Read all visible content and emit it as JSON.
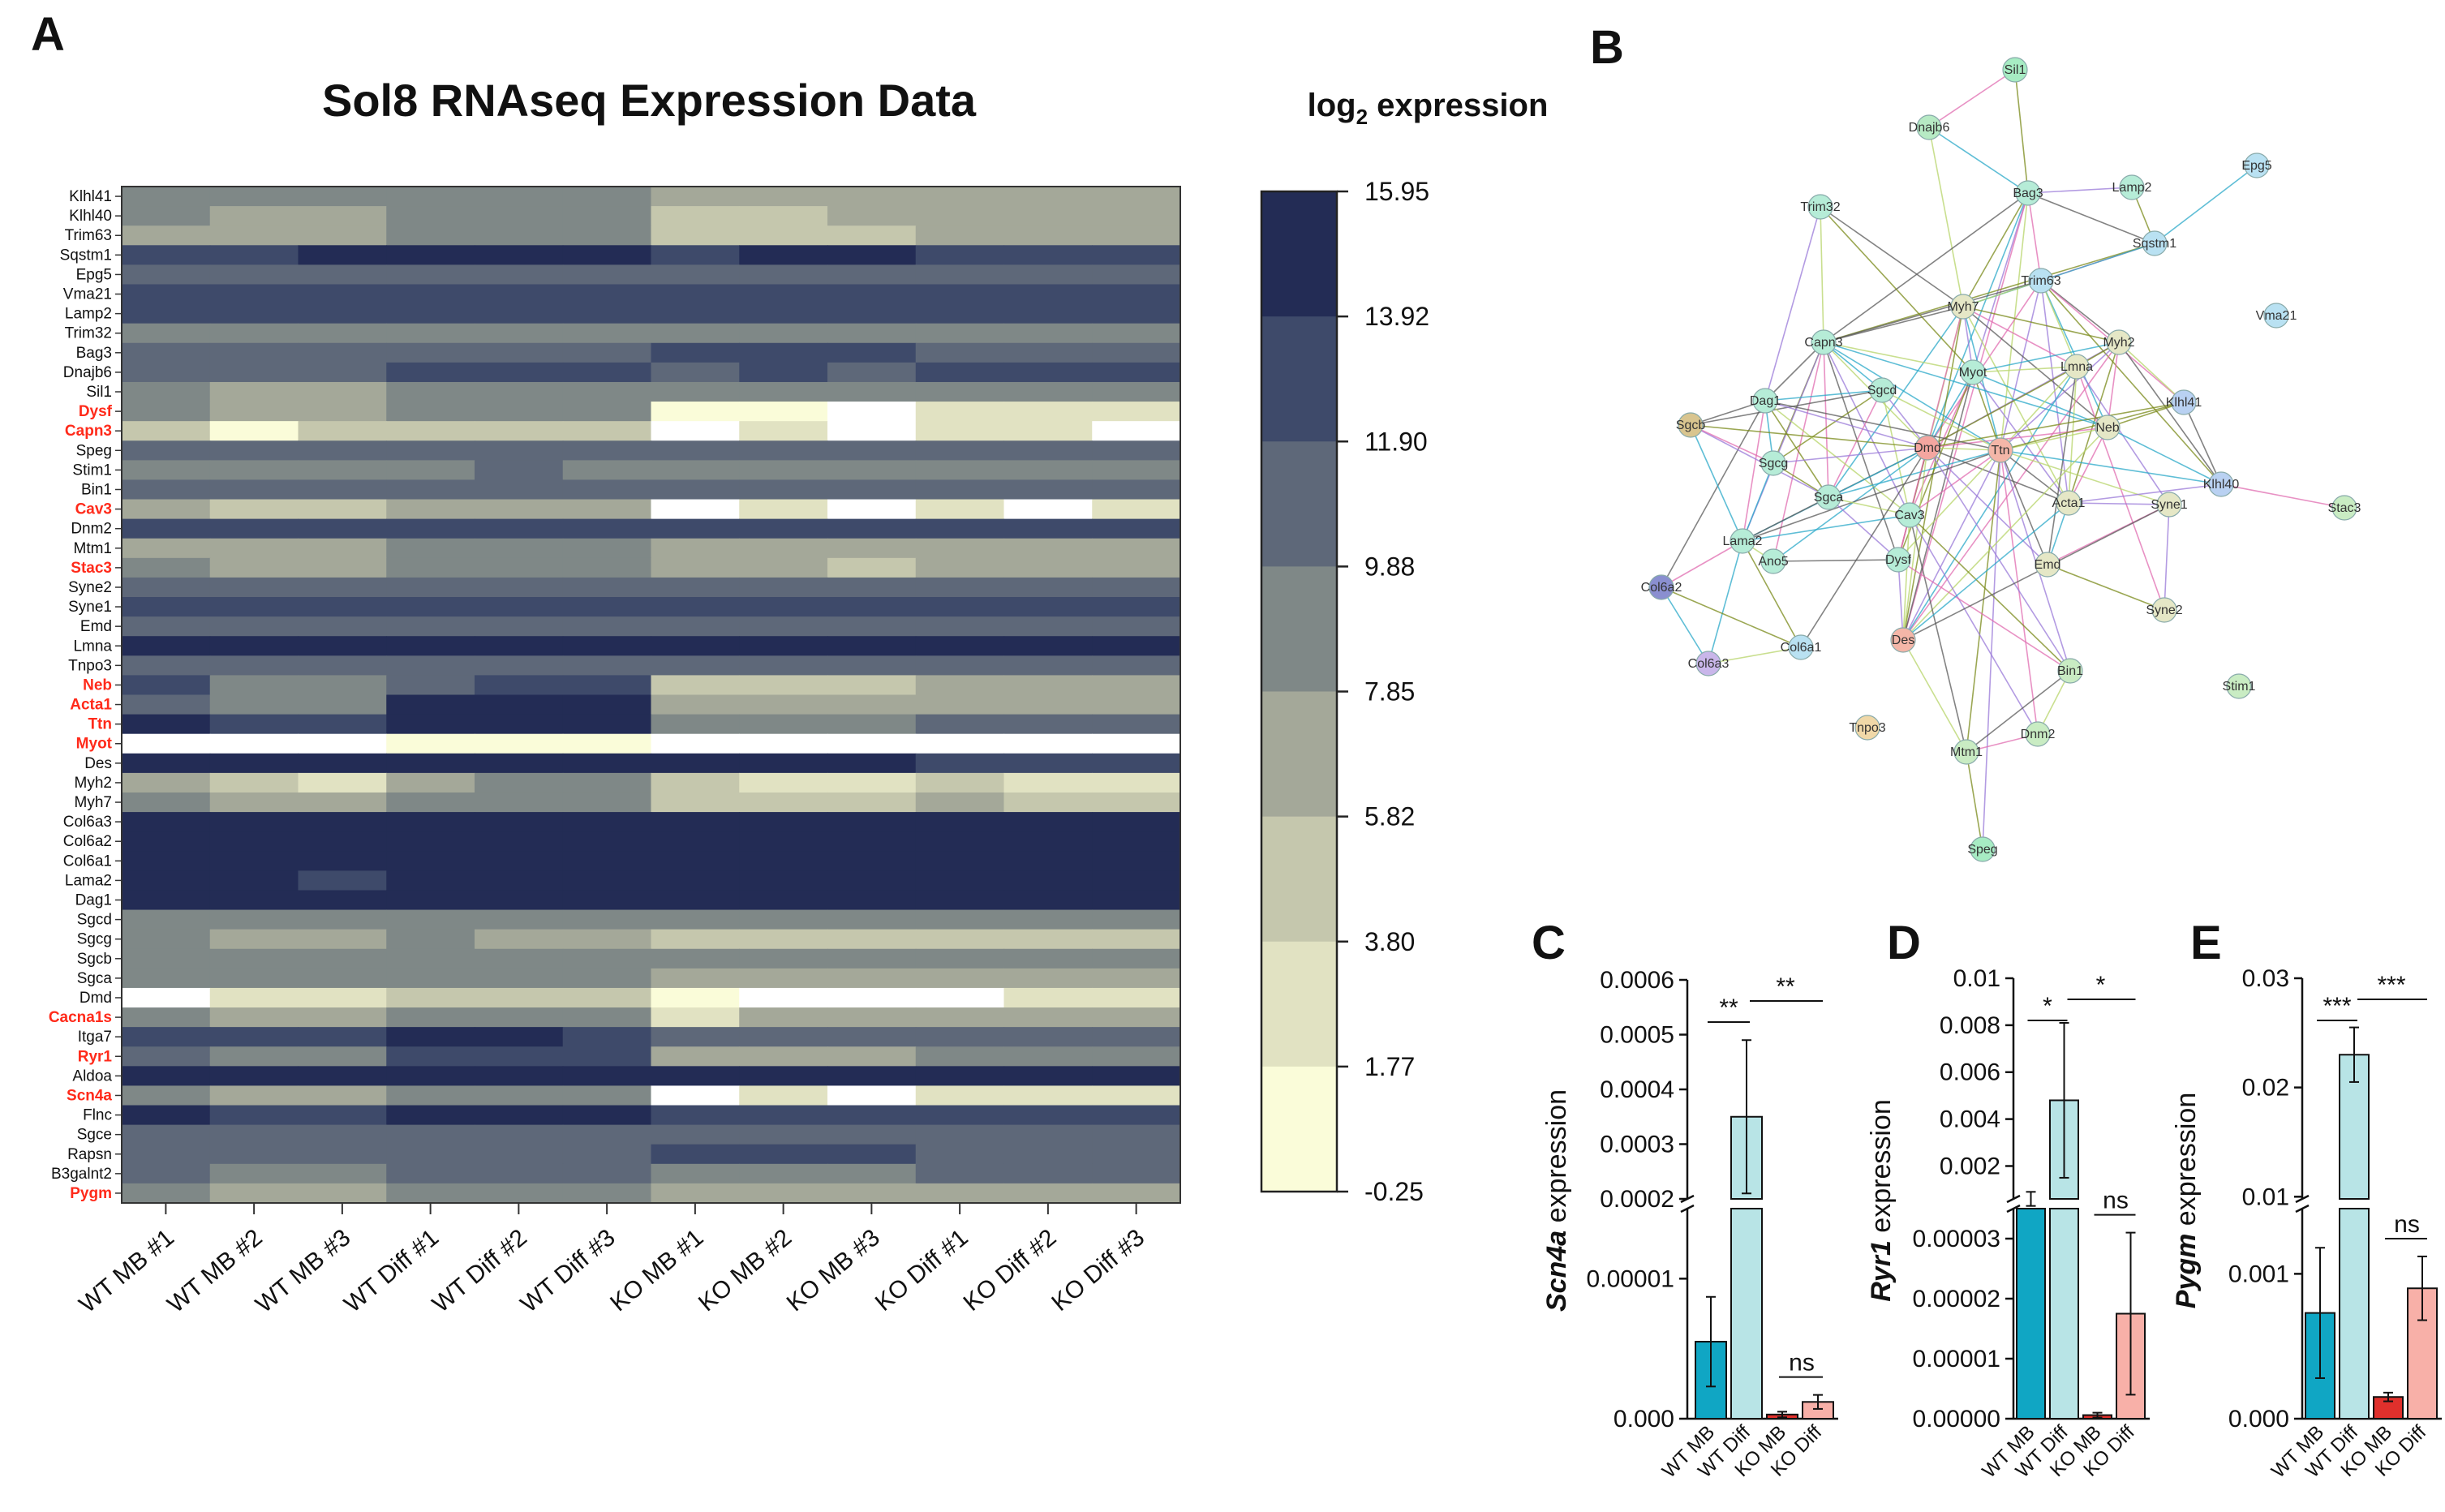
{
  "panels": {
    "a": "A",
    "b": "B",
    "c": "C",
    "d": "D",
    "e": "E"
  },
  "heatmap": {
    "title": "Sol8 RNAseq Expression Data",
    "legend_title_main": "log",
    "legend_title_sub": "2",
    "legend_title_rest": " expression",
    "colorbar_ticks": [
      "15.95",
      "13.92",
      "11.90",
      "9.88",
      "7.85",
      "5.82",
      "3.80",
      "1.77",
      "-0.25"
    ],
    "colorbar_colors": [
      "#232c55",
      "#3e4a6a",
      "#5e6879",
      "#7f8887",
      "#a4a899",
      "#c5c7ad",
      "#e1e2c2",
      "#fafcd9"
    ],
    "samples": [
      "WT MB #1",
      "WT MB #2",
      "WT MB #3",
      "WT Diff #1",
      "WT Diff #2",
      "WT Diff #3",
      "KO MB #1",
      "KO MB #2",
      "KO MB #3",
      "KO Diff #1",
      "KO Diff #2",
      "KO Diff #3"
    ],
    "genes": [
      {
        "name": "Klhl41",
        "hl": false
      },
      {
        "name": "Klhl40",
        "hl": false
      },
      {
        "name": "Trim63",
        "hl": false
      },
      {
        "name": "Sqstm1",
        "hl": false
      },
      {
        "name": "Epg5",
        "hl": false
      },
      {
        "name": "Vma21",
        "hl": false
      },
      {
        "name": "Lamp2",
        "hl": false
      },
      {
        "name": "Trim32",
        "hl": false
      },
      {
        "name": "Bag3",
        "hl": false
      },
      {
        "name": "Dnajb6",
        "hl": false
      },
      {
        "name": "Sil1",
        "hl": false
      },
      {
        "name": "Dysf",
        "hl": true
      },
      {
        "name": "Capn3",
        "hl": true
      },
      {
        "name": "Speg",
        "hl": false
      },
      {
        "name": "Stim1",
        "hl": false
      },
      {
        "name": "Bin1",
        "hl": false
      },
      {
        "name": "Cav3",
        "hl": true
      },
      {
        "name": "Dnm2",
        "hl": false
      },
      {
        "name": "Mtm1",
        "hl": false
      },
      {
        "name": "Stac3",
        "hl": true
      },
      {
        "name": "Syne2",
        "hl": false
      },
      {
        "name": "Syne1",
        "hl": false
      },
      {
        "name": "Emd",
        "hl": false
      },
      {
        "name": "Lmna",
        "hl": false
      },
      {
        "name": "Tnpo3",
        "hl": false
      },
      {
        "name": "Neb",
        "hl": true
      },
      {
        "name": "Acta1",
        "hl": true
      },
      {
        "name": "Ttn",
        "hl": true
      },
      {
        "name": "Myot",
        "hl": true
      },
      {
        "name": "Des",
        "hl": false
      },
      {
        "name": "Myh2",
        "hl": false
      },
      {
        "name": "Myh7",
        "hl": false
      },
      {
        "name": "Col6a3",
        "hl": false
      },
      {
        "name": "Col6a2",
        "hl": false
      },
      {
        "name": "Col6a1",
        "hl": false
      },
      {
        "name": "Lama2",
        "hl": false
      },
      {
        "name": "Dag1",
        "hl": false
      },
      {
        "name": "Sgcd",
        "hl": false
      },
      {
        "name": "Sgcg",
        "hl": false
      },
      {
        "name": "Sgcb",
        "hl": false
      },
      {
        "name": "Sgca",
        "hl": false
      },
      {
        "name": "Dmd",
        "hl": false
      },
      {
        "name": "Cacna1s",
        "hl": true
      },
      {
        "name": "Itga7",
        "hl": false
      },
      {
        "name": "Ryr1",
        "hl": true
      },
      {
        "name": "Aldoa",
        "hl": false
      },
      {
        "name": "Scn4a",
        "hl": true
      },
      {
        "name": "Flnc",
        "hl": false
      },
      {
        "name": "Sgce",
        "hl": false
      },
      {
        "name": "Rapsn",
        "hl": false
      },
      {
        "name": "B3galnt2",
        "hl": false
      },
      {
        "name": "Pygm",
        "hl": true
      }
    ],
    "values": [
      [
        9,
        9,
        9,
        9,
        9,
        9,
        6,
        6,
        6,
        6,
        6,
        6
      ],
      [
        8,
        7,
        7,
        8,
        9,
        8,
        5,
        5,
        6,
        7,
        7,
        7
      ],
      [
        7,
        6,
        6,
        8,
        8,
        8,
        5,
        5,
        5,
        6,
        6,
        6
      ],
      [
        13,
        13,
        15,
        14,
        15,
        15,
        13,
        15,
        14,
        13,
        13,
        13
      ],
      [
        11,
        11,
        11,
        11,
        11,
        11,
        11,
        11,
        11,
        11,
        11,
        11
      ],
      [
        12,
        12,
        12,
        12,
        12,
        12,
        12,
        12,
        12,
        12,
        12,
        12
      ],
      [
        13,
        13,
        13,
        13,
        13,
        13,
        13,
        13,
        13,
        13,
        13,
        13
      ],
      [
        9,
        9,
        9,
        9,
        9,
        9,
        9,
        9,
        9,
        9,
        9,
        9
      ],
      [
        10,
        10,
        10,
        11,
        11,
        11,
        12,
        12,
        13,
        11,
        11,
        11
      ],
      [
        11,
        11,
        11,
        13,
        13,
        13,
        11,
        13,
        11,
        12,
        12,
        12
      ],
      [
        8,
        7,
        7,
        8,
        8,
        8,
        8,
        8,
        8,
        8,
        8,
        8
      ],
      [
        8,
        7,
        7,
        8,
        8,
        8,
        1,
        1,
        0,
        3,
        3,
        3
      ],
      [
        4,
        1,
        4,
        5,
        5,
        5,
        -0.25,
        2,
        -0.25,
        2,
        2,
        -0.25
      ],
      [
        10,
        10,
        10,
        10,
        10,
        10,
        10,
        10,
        10,
        10,
        10,
        10
      ],
      [
        9,
        9,
        9,
        8,
        10,
        9,
        8,
        9,
        9,
        8,
        9,
        9
      ],
      [
        11,
        11,
        11,
        11,
        11,
        11,
        11,
        11,
        11,
        11,
        11,
        11
      ],
      [
        6,
        4,
        4,
        6,
        6,
        6,
        -0.25,
        3,
        -0.25,
        3,
        -0.25,
        2
      ],
      [
        12,
        12,
        12,
        12,
        12,
        12,
        12,
        12,
        12,
        12,
        12,
        12
      ],
      [
        7,
        6,
        6,
        8,
        8,
        8,
        7,
        7,
        7,
        7,
        7,
        7
      ],
      [
        8,
        6,
        6,
        9,
        9,
        9,
        6,
        6,
        4,
        6,
        6,
        6
      ],
      [
        10,
        10,
        10,
        10,
        10,
        10,
        10,
        10,
        10,
        10,
        10,
        10
      ],
      [
        12,
        12,
        12,
        12,
        12,
        12,
        12,
        12,
        12,
        13,
        13,
        13
      ],
      [
        11,
        11,
        11,
        11,
        11,
        11,
        11,
        11,
        11,
        11,
        11,
        11
      ],
      [
        14,
        14,
        14,
        14,
        14,
        14,
        14,
        14,
        14,
        14,
        14,
        14
      ],
      [
        11,
        11,
        11,
        11,
        11,
        11,
        11,
        11,
        11,
        11,
        11,
        11
      ],
      [
        12,
        8,
        8,
        11,
        12,
        12,
        5,
        5,
        5,
        6,
        6,
        6
      ],
      [
        10,
        9,
        9,
        15,
        15,
        14,
        6,
        7,
        6,
        7,
        7,
        7
      ],
      [
        14,
        12,
        12,
        14,
        14,
        14,
        9,
        9,
        9,
        10,
        10,
        10
      ],
      [
        -0.25,
        -0.25,
        -0.25,
        1,
        1,
        1,
        -0.25,
        -0.25,
        -0.25,
        -0.25,
        -0.25,
        -0.25
      ],
      [
        15,
        15,
        15,
        14,
        14,
        14,
        15,
        14,
        14,
        13,
        13,
        13
      ],
      [
        7,
        4,
        3,
        7,
        8,
        8,
        4,
        2,
        2,
        4,
        2,
        2
      ],
      [
        8,
        7,
        7,
        8,
        8,
        8,
        5,
        5,
        5,
        6,
        5,
        5
      ],
      [
        15,
        15,
        15,
        15,
        15,
        15,
        15,
        15,
        15,
        15,
        15,
        15
      ],
      [
        15,
        14,
        14,
        15,
        15,
        15,
        14,
        14,
        14,
        14,
        15,
        14
      ],
      [
        15,
        14,
        14,
        15,
        15,
        15,
        15,
        15,
        15,
        14,
        14,
        14
      ],
      [
        14,
        14,
        13,
        14,
        14,
        14,
        14,
        14,
        14,
        14,
        14,
        14
      ],
      [
        15,
        15,
        14,
        15,
        15,
        15,
        15,
        15,
        15,
        15,
        15,
        15
      ],
      [
        8,
        8,
        8,
        8,
        8,
        8,
        8,
        8,
        8,
        8,
        8,
        8
      ],
      [
        8,
        6,
        6,
        8,
        7,
        7,
        4,
        5,
        4,
        5,
        4,
        4
      ],
      [
        9,
        9,
        9,
        9,
        9,
        9,
        9,
        9,
        9,
        9,
        9,
        9
      ],
      [
        9,
        8,
        8,
        9,
        9,
        9,
        6,
        6,
        6,
        7,
        7,
        7
      ],
      [
        -0.25,
        2,
        2,
        4,
        4,
        4,
        1,
        -0.25,
        -0.25,
        -0.25,
        2,
        2
      ],
      [
        8,
        7,
        7,
        9,
        9,
        9,
        2,
        6,
        6,
        6,
        6,
        6
      ],
      [
        12,
        12,
        12,
        14,
        15,
        12,
        10,
        10,
        10,
        11,
        11,
        11
      ],
      [
        10,
        9,
        9,
        12,
        12,
        12,
        7,
        7,
        7,
        8,
        8,
        8
      ],
      [
        15,
        15,
        15,
        15,
        15,
        15,
        15,
        15,
        15,
        15,
        15,
        15
      ],
      [
        9,
        7,
        7,
        9,
        9,
        9,
        -0.25,
        2,
        -0.25,
        2,
        2,
        2
      ],
      [
        14,
        12,
        12,
        15,
        15,
        15,
        12,
        12,
        12,
        12,
        12,
        12
      ],
      [
        10,
        10,
        10,
        11,
        11,
        11,
        10,
        10,
        10,
        10,
        10,
        10
      ],
      [
        10,
        10,
        10,
        10,
        10,
        10,
        12,
        12,
        12,
        11,
        11,
        11
      ],
      [
        10,
        9,
        9,
        10,
        10,
        10,
        9,
        9,
        9,
        10,
        10,
        10
      ],
      [
        9,
        7,
        7,
        9,
        9,
        9,
        6,
        6,
        6,
        7,
        7,
        7
      ]
    ]
  },
  "network": {
    "nodes": [
      {
        "name": "Sil1",
        "color": "#a7ecc3"
      },
      {
        "name": "Dnajb6",
        "color": "#b7eac4"
      },
      {
        "name": "Epg5",
        "color": "#b9e1f2"
      },
      {
        "name": "Trim32",
        "color": "#b6ecd7"
      },
      {
        "name": "Bag3",
        "color": "#b6ecd7"
      },
      {
        "name": "Lamp2",
        "color": "#b6ecd7"
      },
      {
        "name": "Sqstm1",
        "color": "#b9e1f2"
      },
      {
        "name": "Trim63",
        "color": "#b9e1f2"
      },
      {
        "name": "Vma21",
        "color": "#b9e1f2"
      },
      {
        "name": "Myh7",
        "color": "#e5e7c6"
      },
      {
        "name": "Capn3",
        "color": "#b6ecd7"
      },
      {
        "name": "Myh2",
        "color": "#e5e7c6"
      },
      {
        "name": "Myot",
        "color": "#b6ecd7"
      },
      {
        "name": "Lmna",
        "color": "#e5e7c6"
      },
      {
        "name": "Sgcd",
        "color": "#b6ecd7"
      },
      {
        "name": "Dag1",
        "color": "#b6ecd7"
      },
      {
        "name": "Sgcb",
        "color": "#d9c58f"
      },
      {
        "name": "Dmd",
        "color": "#f4a6a0"
      },
      {
        "name": "Ttn",
        "color": "#f4b6a8"
      },
      {
        "name": "Neb",
        "color": "#e5e7c6"
      },
      {
        "name": "Klhl41",
        "color": "#b9d1f2"
      },
      {
        "name": "Sgcg",
        "color": "#b6ecd7"
      },
      {
        "name": "Klhl40",
        "color": "#b9d1f2"
      },
      {
        "name": "Stac3",
        "color": "#c9ecc3"
      },
      {
        "name": "Sgca",
        "color": "#b6ecd7"
      },
      {
        "name": "Acta1",
        "color": "#e5e7c6"
      },
      {
        "name": "Syne1",
        "color": "#e5e7c6"
      },
      {
        "name": "Cav3",
        "color": "#b6ecd7"
      },
      {
        "name": "Lama2",
        "color": "#b6ecd7"
      },
      {
        "name": "Ano5",
        "color": "#b6ecd7"
      },
      {
        "name": "Dysf",
        "color": "#b6ecd7"
      },
      {
        "name": "Emd",
        "color": "#e5e7c6"
      },
      {
        "name": "Col6a2",
        "color": "#8a8fd0"
      },
      {
        "name": "Syne2",
        "color": "#e5e7c6"
      },
      {
        "name": "Col6a1",
        "color": "#b9e1f2"
      },
      {
        "name": "Des",
        "color": "#f4b6a8"
      },
      {
        "name": "Col6a3",
        "color": "#c9b6ea"
      },
      {
        "name": "Bin1",
        "color": "#c9ecc3"
      },
      {
        "name": "Stim1",
        "color": "#c9ecc3"
      },
      {
        "name": "Tnpo3",
        "color": "#f0d8a8"
      },
      {
        "name": "Dnm2",
        "color": "#c9ecc3"
      },
      {
        "name": "Mtm1",
        "color": "#c9ecc3"
      },
      {
        "name": "Speg",
        "color": "#a7ecc3"
      }
    ]
  },
  "bar_charts": [
    {
      "panel": "C",
      "gene": "Scn4a",
      "ylabel_rest": " expression",
      "categories": [
        "WT MB",
        "WT Diff",
        "KO MB",
        "KO Diff"
      ],
      "colors": [
        "#10a6c4",
        "#b8e4e6",
        "#e0302c",
        "#f8b0a8"
      ],
      "upper_ticks": [
        "0.0006",
        "0.0005",
        "0.0004",
        "0.0003",
        "0.0002"
      ],
      "lower_ticks": [
        "0.00001",
        "0.000"
      ],
      "values": [
        5.5e-06,
        0.00035,
        3e-07,
        1.2e-06
      ],
      "sig": {
        "a": "**",
        "b": "**",
        "c": "ns"
      }
    },
    {
      "panel": "D",
      "gene": "Ryr1",
      "ylabel_rest": " expression",
      "categories": [
        "WT MB",
        "WT Diff",
        "KO MB",
        "KO Diff"
      ],
      "colors": [
        "#10a6c4",
        "#b8e4e6",
        "#e0302c",
        "#f8b0a8"
      ],
      "upper_ticks": [
        "0.01",
        "0.008",
        "0.006",
        "0.004",
        "0.002"
      ],
      "lower_ticks": [
        "0.00003",
        "0.00002",
        "0.00001",
        "0.00000"
      ],
      "values": [
        0.0006,
        0.0048,
        6e-07,
        1.75e-05
      ],
      "sig": {
        "a": "*",
        "b": "*",
        "c": "ns"
      }
    },
    {
      "panel": "E",
      "gene": "Pygm",
      "ylabel_rest": " expression",
      "categories": [
        "WT MB",
        "WT Diff",
        "KO MB",
        "KO Diff"
      ],
      "colors": [
        "#10a6c4",
        "#b8e4e6",
        "#e0302c",
        "#f8b0a8"
      ],
      "upper_ticks": [
        "0.03",
        "0.02",
        "0.01"
      ],
      "lower_ticks": [
        "0.001",
        "0.000"
      ],
      "values": [
        0.00073,
        0.023,
        0.00015,
        0.0009
      ],
      "sig": {
        "a": "***",
        "b": "***",
        "c": "ns"
      }
    }
  ],
  "chart_data": [
    {
      "type": "heatmap",
      "title": "Sol8 RNAseq Expression Data",
      "colorbar_label": "log2 expression",
      "range": [
        -0.25,
        15.95
      ]
    },
    {
      "type": "bar",
      "title": "",
      "ylabel": "Scn4a expression",
      "categories": [
        "WT MB",
        "WT Diff",
        "KO MB",
        "KO Diff"
      ],
      "values": [
        5.5e-06,
        0.00035,
        3e-07,
        1.2e-06
      ]
    },
    {
      "type": "bar",
      "title": "",
      "ylabel": "Ryr1 expression",
      "categories": [
        "WT MB",
        "WT Diff",
        "KO MB",
        "KO Diff"
      ],
      "values": [
        0.0006,
        0.0048,
        6e-07,
        1.75e-05
      ]
    },
    {
      "type": "bar",
      "title": "",
      "ylabel": "Pygm expression",
      "categories": [
        "WT MB",
        "WT Diff",
        "KO MB",
        "KO Diff"
      ],
      "values": [
        0.00073,
        0.023,
        0.00015,
        0.0009
      ]
    }
  ]
}
